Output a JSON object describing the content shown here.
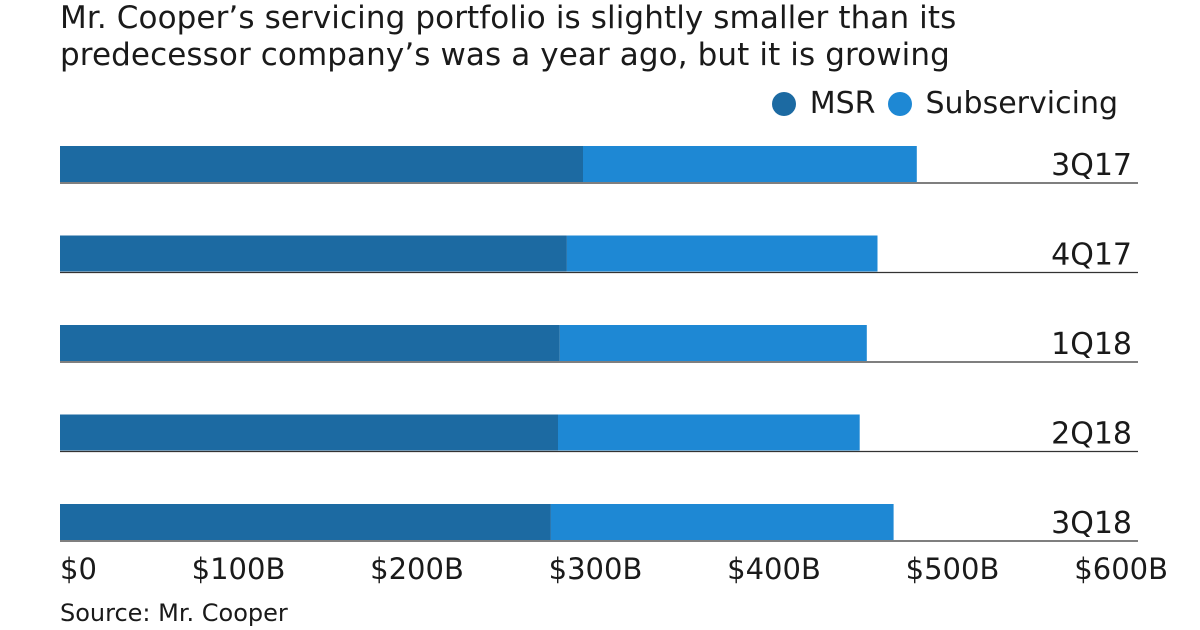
{
  "chart_data": {
    "type": "bar",
    "orientation": "horizontal",
    "stacked": true,
    "title": "Mr. Cooper’s servicing portfolio is slightly smaller than its predecessor company’s was a year ago, but it is growing",
    "title_lines": [
      "Mr. Cooper’s servicing portfolio is slightly smaller than its",
      "predecessor company’s was a year ago, but it is growing"
    ],
    "categories": [
      "3Q17",
      "4Q17",
      "1Q18",
      "2Q18",
      "3Q18"
    ],
    "series": [
      {
        "name": "MSR",
        "color": "#1c6aa2",
        "values": [
          293,
          284,
          280,
          279,
          275
        ]
      },
      {
        "name": "Subservicing",
        "color": "#1e88d4",
        "values": [
          187,
          174,
          172,
          169,
          192
        ]
      }
    ],
    "xlim": [
      0,
      600
    ],
    "x_ticks": [
      {
        "value": 0,
        "label": "$0"
      },
      {
        "value": 100,
        "label": "$100B"
      },
      {
        "value": 200,
        "label": "$200B"
      },
      {
        "value": 300,
        "label": "$300B"
      },
      {
        "value": 400,
        "label": "$400B"
      },
      {
        "value": 500,
        "label": "$500B"
      },
      {
        "value": 600,
        "label": "$600B"
      }
    ],
    "xlabel": "",
    "ylabel": "",
    "legend_position": "top-right",
    "grid": false
  },
  "source": "Source: Mr. Cooper"
}
